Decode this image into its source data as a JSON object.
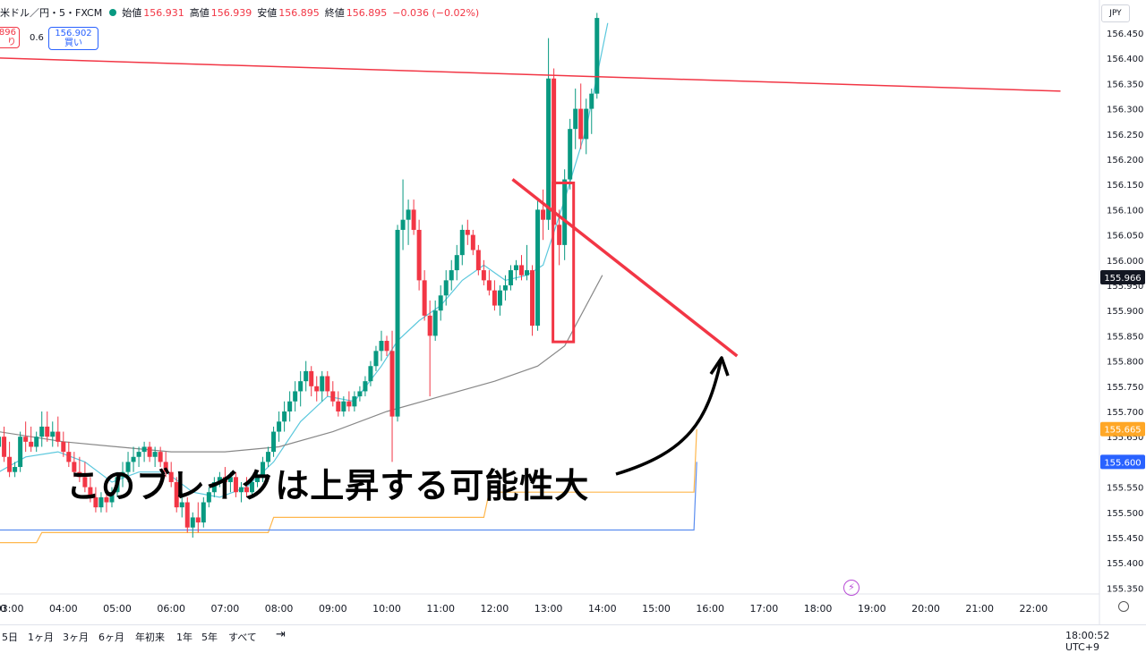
{
  "header": {
    "symbol": "米ドル／円・5・FXCM",
    "open_label": "始値",
    "open": "156.931",
    "high_label": "高値",
    "high": "156.939",
    "low_label": "安値",
    "low": "156.895",
    "close_label": "終値",
    "close": "156.895",
    "change": "−0.036 (−0.02%)"
  },
  "trade": {
    "sell_price": ".896",
    "sell_label": "り",
    "spread": "0.6",
    "buy_price": "156.902",
    "buy_label": "買い"
  },
  "currency_button": "JPY",
  "annotation": "このブレイクは上昇する可能性大",
  "bottom": {
    "ranges": [
      "5日",
      "1ヶ月",
      "3ヶ月",
      "6ヶ月",
      "年初来",
      "1年",
      "5年",
      "すべて"
    ],
    "clock": "18:00:52 UTC+9"
  },
  "colors": {
    "up": "#089981",
    "down": "#f23645",
    "annotation": "#f23645",
    "ema": "#5bc8dd",
    "sma": "#888888",
    "upper_band": "#ffb74d",
    "lower_band": "#5b8def"
  },
  "chart_data": {
    "type": "candlestick",
    "symbol": "USD/JPY",
    "interval": "5m",
    "y_axis_ticks": [
      "156.450",
      "156.400",
      "156.350",
      "156.300",
      "156.250",
      "156.200",
      "156.150",
      "156.100",
      "156.050",
      "156.000",
      "155.950",
      "155.900",
      "155.850",
      "155.800",
      "155.750",
      "155.700",
      "155.650",
      "155.600",
      "155.550",
      "155.500",
      "155.450",
      "155.400",
      "155.350"
    ],
    "ylim": [
      155.32,
      156.49
    ],
    "x_axis_ticks": [
      "03:00",
      "04:00",
      "05:00",
      "06:00",
      "07:00",
      "08:00",
      "09:00",
      "10:00",
      "11:00",
      "12:00",
      "13:00",
      "14:00",
      "15:00",
      "16:00",
      "17:00",
      "18:00",
      "19:00",
      "20:00",
      "21:00",
      "22:00"
    ],
    "x_axis_first_tick": "0",
    "price_labels": [
      {
        "value": "155.966",
        "color": "#131722"
      },
      {
        "value": "155.665",
        "color": "#ffa726"
      },
      {
        "value": "155.600",
        "color": "#2962ff"
      }
    ],
    "series": [
      {
        "type": "candlestick",
        "approximate": true,
        "points": [
          [
            2.8,
            155.63,
            155.66,
            155.61,
            155.65
          ],
          [
            2.9,
            155.65,
            155.67,
            155.6,
            155.61
          ],
          [
            3.0,
            155.61,
            155.64,
            155.57,
            155.58
          ],
          [
            3.1,
            155.58,
            155.6,
            155.57,
            155.59
          ],
          [
            3.2,
            155.59,
            155.66,
            155.58,
            155.65
          ],
          [
            3.3,
            155.65,
            155.68,
            155.62,
            155.64
          ],
          [
            3.4,
            155.64,
            155.67,
            155.62,
            155.63
          ],
          [
            3.5,
            155.63,
            155.66,
            155.62,
            155.65
          ],
          [
            3.6,
            155.65,
            155.7,
            155.63,
            155.67
          ],
          [
            3.7,
            155.67,
            155.7,
            155.64,
            155.65
          ],
          [
            3.8,
            155.65,
            155.68,
            155.63,
            155.66
          ],
          [
            3.9,
            155.66,
            155.69,
            155.63,
            155.64
          ],
          [
            4.0,
            155.64,
            155.66,
            155.61,
            155.62
          ],
          [
            4.1,
            155.62,
            155.64,
            155.59,
            155.6
          ],
          [
            4.2,
            155.6,
            155.62,
            155.57,
            155.58
          ],
          [
            4.3,
            155.58,
            155.61,
            155.56,
            155.57
          ],
          [
            4.4,
            155.57,
            155.6,
            155.54,
            155.55
          ],
          [
            4.5,
            155.55,
            155.57,
            155.52,
            155.53
          ],
          [
            4.6,
            155.53,
            155.55,
            155.5,
            155.51
          ],
          [
            4.7,
            155.51,
            155.54,
            155.5,
            155.53
          ],
          [
            4.8,
            155.53,
            155.56,
            155.5,
            155.52
          ],
          [
            4.9,
            155.52,
            155.55,
            155.51,
            155.54
          ],
          [
            5.0,
            155.54,
            155.58,
            155.53,
            155.57
          ],
          [
            5.1,
            155.57,
            155.6,
            155.55,
            155.58
          ],
          [
            5.2,
            155.58,
            155.62,
            155.56,
            155.6
          ],
          [
            5.3,
            155.6,
            155.63,
            155.58,
            155.61
          ],
          [
            5.4,
            155.61,
            155.63,
            155.59,
            155.62
          ],
          [
            5.5,
            155.62,
            155.64,
            155.6,
            155.63
          ],
          [
            5.6,
            155.63,
            155.64,
            155.6,
            155.61
          ],
          [
            5.7,
            155.61,
            155.63,
            155.59,
            155.62
          ],
          [
            5.8,
            155.62,
            155.63,
            155.59,
            155.6
          ],
          [
            5.9,
            155.6,
            155.62,
            155.57,
            155.58
          ],
          [
            6.0,
            155.58,
            155.6,
            155.55,
            155.56
          ],
          [
            6.1,
            155.56,
            155.57,
            155.5,
            155.51
          ],
          [
            6.2,
            155.51,
            155.54,
            155.49,
            155.52
          ],
          [
            6.3,
            155.52,
            155.53,
            155.46,
            155.47
          ],
          [
            6.4,
            155.47,
            155.5,
            155.45,
            155.49
          ],
          [
            6.5,
            155.49,
            155.52,
            155.46,
            155.48
          ],
          [
            6.6,
            155.48,
            155.53,
            155.47,
            155.52
          ],
          [
            6.7,
            155.52,
            155.55,
            155.51,
            155.54
          ],
          [
            6.8,
            155.54,
            155.57,
            155.53,
            155.56
          ],
          [
            6.9,
            155.56,
            155.58,
            155.55,
            155.57
          ],
          [
            7.0,
            155.57,
            155.59,
            155.55,
            155.56
          ],
          [
            7.1,
            155.56,
            155.58,
            155.54,
            155.57
          ],
          [
            7.2,
            155.57,
            155.58,
            155.53,
            155.54
          ],
          [
            7.3,
            155.54,
            155.56,
            155.52,
            155.55
          ],
          [
            7.4,
            155.55,
            155.57,
            155.53,
            155.54
          ],
          [
            7.5,
            155.54,
            155.57,
            155.53,
            155.56
          ],
          [
            7.6,
            155.56,
            155.58,
            155.55,
            155.57
          ],
          [
            7.7,
            155.57,
            155.61,
            155.56,
            155.6
          ],
          [
            7.8,
            155.6,
            155.63,
            155.59,
            155.62
          ],
          [
            7.9,
            155.62,
            155.67,
            155.61,
            155.66
          ],
          [
            8.0,
            155.66,
            155.7,
            155.64,
            155.68
          ],
          [
            8.1,
            155.68,
            155.72,
            155.66,
            155.7
          ],
          [
            8.2,
            155.7,
            155.74,
            155.68,
            155.72
          ],
          [
            8.3,
            155.72,
            155.76,
            155.7,
            155.74
          ],
          [
            8.4,
            155.74,
            155.78,
            155.71,
            155.76
          ],
          [
            8.5,
            155.76,
            155.8,
            155.74,
            155.78
          ],
          [
            8.6,
            155.78,
            155.79,
            155.73,
            155.75
          ],
          [
            8.7,
            155.75,
            155.77,
            155.72,
            155.74
          ],
          [
            8.8,
            155.74,
            155.78,
            155.72,
            155.77
          ],
          [
            8.9,
            155.77,
            155.78,
            155.73,
            155.74
          ],
          [
            9.0,
            155.74,
            155.76,
            155.71,
            155.72
          ],
          [
            9.1,
            155.72,
            155.74,
            155.69,
            155.7
          ],
          [
            9.2,
            155.7,
            155.73,
            155.69,
            155.72
          ],
          [
            9.3,
            155.72,
            155.74,
            155.7,
            155.71
          ],
          [
            9.4,
            155.71,
            155.74,
            155.7,
            155.73
          ],
          [
            9.5,
            155.73,
            155.75,
            155.72,
            155.74
          ],
          [
            9.6,
            155.74,
            155.77,
            155.73,
            155.76
          ],
          [
            9.7,
            155.76,
            155.8,
            155.75,
            155.79
          ],
          [
            9.8,
            155.79,
            155.83,
            155.78,
            155.82
          ],
          [
            9.9,
            155.82,
            155.86,
            155.8,
            155.84
          ],
          [
            10.0,
            155.84,
            155.85,
            155.81,
            155.82
          ],
          [
            10.1,
            155.82,
            155.86,
            155.6,
            155.69
          ],
          [
            10.2,
            155.69,
            156.07,
            155.68,
            156.06
          ],
          [
            10.3,
            156.06,
            156.16,
            156.02,
            156.08
          ],
          [
            10.4,
            156.08,
            156.12,
            156.03,
            156.1
          ],
          [
            10.5,
            156.1,
            156.12,
            156.05,
            156.06
          ],
          [
            10.6,
            156.06,
            156.08,
            155.94,
            155.96
          ],
          [
            10.7,
            155.96,
            155.98,
            155.88,
            155.89
          ],
          [
            10.8,
            155.89,
            155.92,
            155.73,
            155.85
          ],
          [
            10.9,
            155.85,
            155.92,
            155.84,
            155.9
          ],
          [
            11.0,
            155.9,
            155.95,
            155.88,
            155.93
          ],
          [
            11.1,
            155.93,
            155.98,
            155.91,
            155.96
          ],
          [
            11.2,
            155.96,
            156.0,
            155.94,
            155.98
          ],
          [
            11.3,
            155.98,
            156.03,
            155.96,
            156.01
          ],
          [
            11.4,
            156.01,
            156.07,
            155.99,
            156.06
          ],
          [
            11.5,
            156.06,
            156.08,
            156.03,
            156.05
          ],
          [
            11.6,
            156.05,
            156.06,
            156.01,
            156.02
          ],
          [
            11.7,
            156.02,
            156.03,
            155.97,
            155.98
          ],
          [
            11.8,
            155.98,
            156.0,
            155.95,
            155.96
          ],
          [
            11.9,
            155.96,
            155.98,
            155.93,
            155.94
          ],
          [
            12.0,
            155.94,
            155.96,
            155.9,
            155.91
          ],
          [
            12.1,
            155.91,
            155.95,
            155.89,
            155.94
          ],
          [
            12.2,
            155.94,
            155.97,
            155.92,
            155.95
          ],
          [
            12.3,
            155.95,
            155.99,
            155.94,
            155.98
          ],
          [
            12.4,
            155.98,
            156.0,
            155.96,
            155.99
          ],
          [
            12.5,
            155.99,
            156.01,
            155.96,
            155.97
          ],
          [
            12.6,
            155.97,
            156.03,
            155.96,
            155.98
          ],
          [
            12.7,
            155.98,
            155.99,
            155.85,
            155.87
          ],
          [
            12.8,
            155.87,
            156.12,
            155.86,
            156.1
          ],
          [
            12.9,
            156.1,
            156.14,
            156.04,
            156.08
          ],
          [
            13.0,
            156.08,
            156.44,
            156.06,
            156.36
          ],
          [
            13.1,
            156.36,
            156.38,
            156.05,
            156.07
          ],
          [
            13.2,
            156.07,
            156.1,
            155.99,
            156.03
          ],
          [
            13.3,
            156.03,
            156.18,
            156.0,
            156.16
          ],
          [
            13.4,
            156.16,
            156.28,
            156.14,
            156.26
          ],
          [
            13.5,
            156.26,
            156.34,
            156.22,
            156.3
          ],
          [
            13.6,
            156.3,
            156.35,
            156.22,
            156.24
          ],
          [
            13.7,
            156.24,
            156.32,
            156.21,
            156.3
          ],
          [
            13.8,
            156.3,
            156.34,
            156.25,
            156.33
          ],
          [
            13.9,
            156.33,
            156.49,
            156.32,
            156.48
          ]
        ]
      },
      {
        "name": "",
        "type": "line",
        "color": "#5bc8dd",
        "approximate": true,
        "x": [
          2.8,
          3.3,
          3.9,
          4.4,
          4.9,
          5.4,
          5.9,
          6.4,
          6.9,
          7.4,
          7.9,
          8.4,
          8.9,
          9.4,
          9.9,
          10.2,
          10.6,
          11.0,
          11.4,
          11.8,
          12.2,
          12.6,
          12.9,
          13.3,
          13.7,
          14.1
        ],
        "y": [
          155.58,
          155.61,
          155.62,
          155.6,
          155.56,
          155.58,
          155.58,
          155.54,
          155.53,
          155.55,
          155.6,
          155.68,
          155.73,
          155.72,
          155.79,
          155.84,
          155.88,
          155.91,
          155.96,
          155.99,
          155.96,
          155.97,
          155.99,
          156.12,
          156.26,
          156.47
        ]
      },
      {
        "name": "",
        "type": "line",
        "color": "#888888",
        "approximate": true,
        "x": [
          2.8,
          4.0,
          5.0,
          6.0,
          7.0,
          8.0,
          9.0,
          10.0,
          11.0,
          12.0,
          12.8,
          13.3,
          14.0
        ],
        "y": [
          155.66,
          155.64,
          155.63,
          155.62,
          155.62,
          155.63,
          155.66,
          155.7,
          155.73,
          155.76,
          155.79,
          155.83,
          155.97
        ]
      },
      {
        "name": "",
        "type": "line",
        "color": "#ffb74d",
        "approximate": true,
        "x": [
          2.8,
          3.5,
          3.6,
          7.8,
          7.9,
          11.8,
          11.9,
          15.7,
          15.75
        ],
        "y": [
          155.44,
          155.44,
          155.46,
          155.46,
          155.49,
          155.49,
          155.54,
          155.54,
          155.665
        ]
      },
      {
        "name": "",
        "type": "line",
        "color": "#5b8def",
        "approximate": true,
        "x": [
          2.8,
          15.7,
          15.75
        ],
        "y": [
          155.465,
          155.465,
          155.6
        ]
      }
    ],
    "annotations": [
      {
        "type": "trendline",
        "color": "#f23645",
        "from": [
          "00:00",
          156.41
        ],
        "to": [
          "22:30",
          156.335
        ]
      },
      {
        "type": "trendline",
        "color": "#f23645",
        "from": [
          "12:20",
          156.16
        ],
        "to": [
          "16:30",
          155.81
        ]
      },
      {
        "type": "rectangle",
        "color": "#f23645",
        "from": [
          "13:05",
          156.153
        ],
        "to": [
          "13:28",
          155.838
        ]
      },
      {
        "type": "arrow",
        "color": "#000000"
      },
      {
        "type": "text",
        "text": "このブレイクは上昇する可能性大"
      }
    ]
  }
}
